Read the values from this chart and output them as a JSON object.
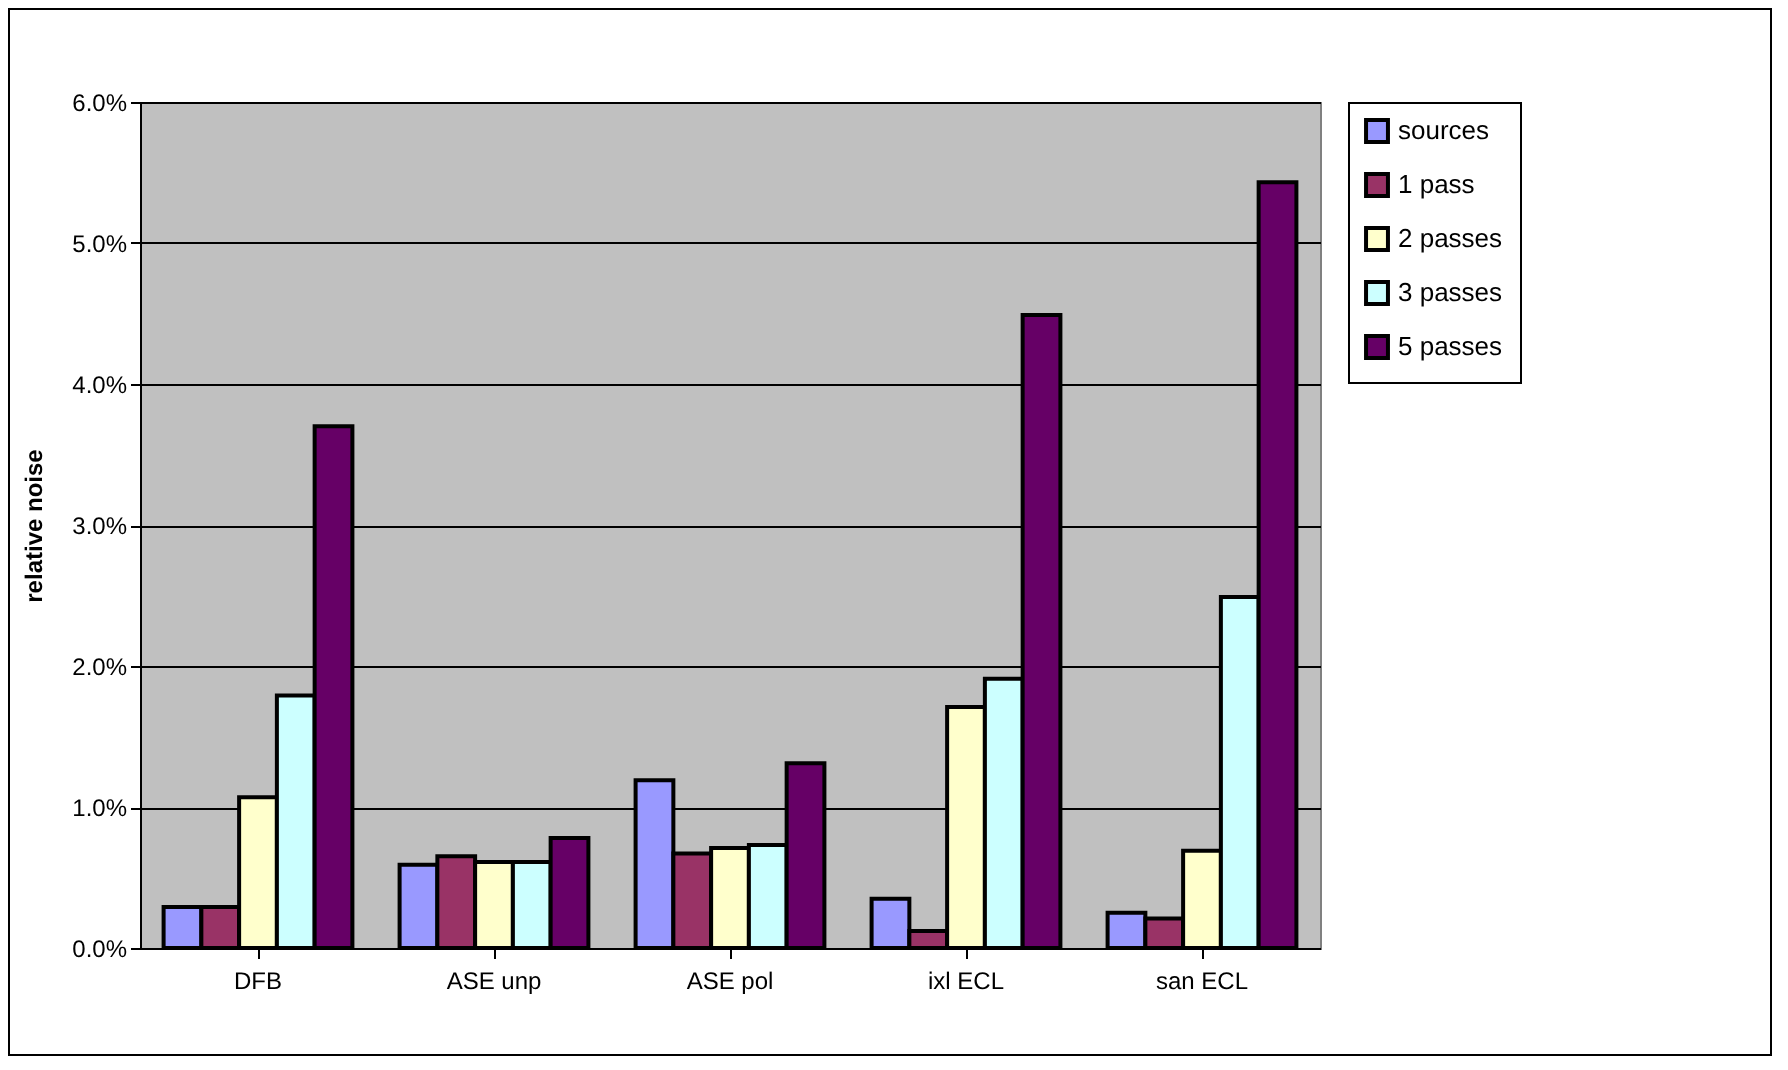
{
  "chart_data": {
    "type": "bar",
    "ylabel": "relative noise",
    "categories": [
      "DFB",
      "ASE unp",
      "ASE pol",
      "ixl ECL",
      "san ECL"
    ],
    "series": [
      {
        "name": "sources",
        "color": "#9999ff",
        "values": [
          0.29,
          0.59,
          1.19,
          0.35,
          0.25
        ]
      },
      {
        "name": "1 pass",
        "color": "#993366",
        "values": [
          0.29,
          0.65,
          0.67,
          0.12,
          0.21
        ]
      },
      {
        "name": "2 passes",
        "color": "#ffffcc",
        "values": [
          1.07,
          0.61,
          0.71,
          1.71,
          0.69
        ]
      },
      {
        "name": "3 passes",
        "color": "#ccffff",
        "values": [
          1.79,
          0.61,
          0.73,
          1.91,
          2.49
        ]
      },
      {
        "name": "5 passes",
        "color": "#660066",
        "values": [
          3.7,
          0.78,
          1.31,
          4.49,
          5.43
        ]
      }
    ],
    "ylim": [
      0,
      6
    ],
    "yticks": [
      {
        "value": 0,
        "label": "0.0%"
      },
      {
        "value": 1,
        "label": "1.0%"
      },
      {
        "value": 2,
        "label": "2.0%"
      },
      {
        "value": 3,
        "label": "3.0%"
      },
      {
        "value": 4,
        "label": "4.0%"
      },
      {
        "value": 5,
        "label": "5.0%"
      },
      {
        "value": 6,
        "label": "6.0%"
      }
    ],
    "grid": "y",
    "legend": "right"
  }
}
